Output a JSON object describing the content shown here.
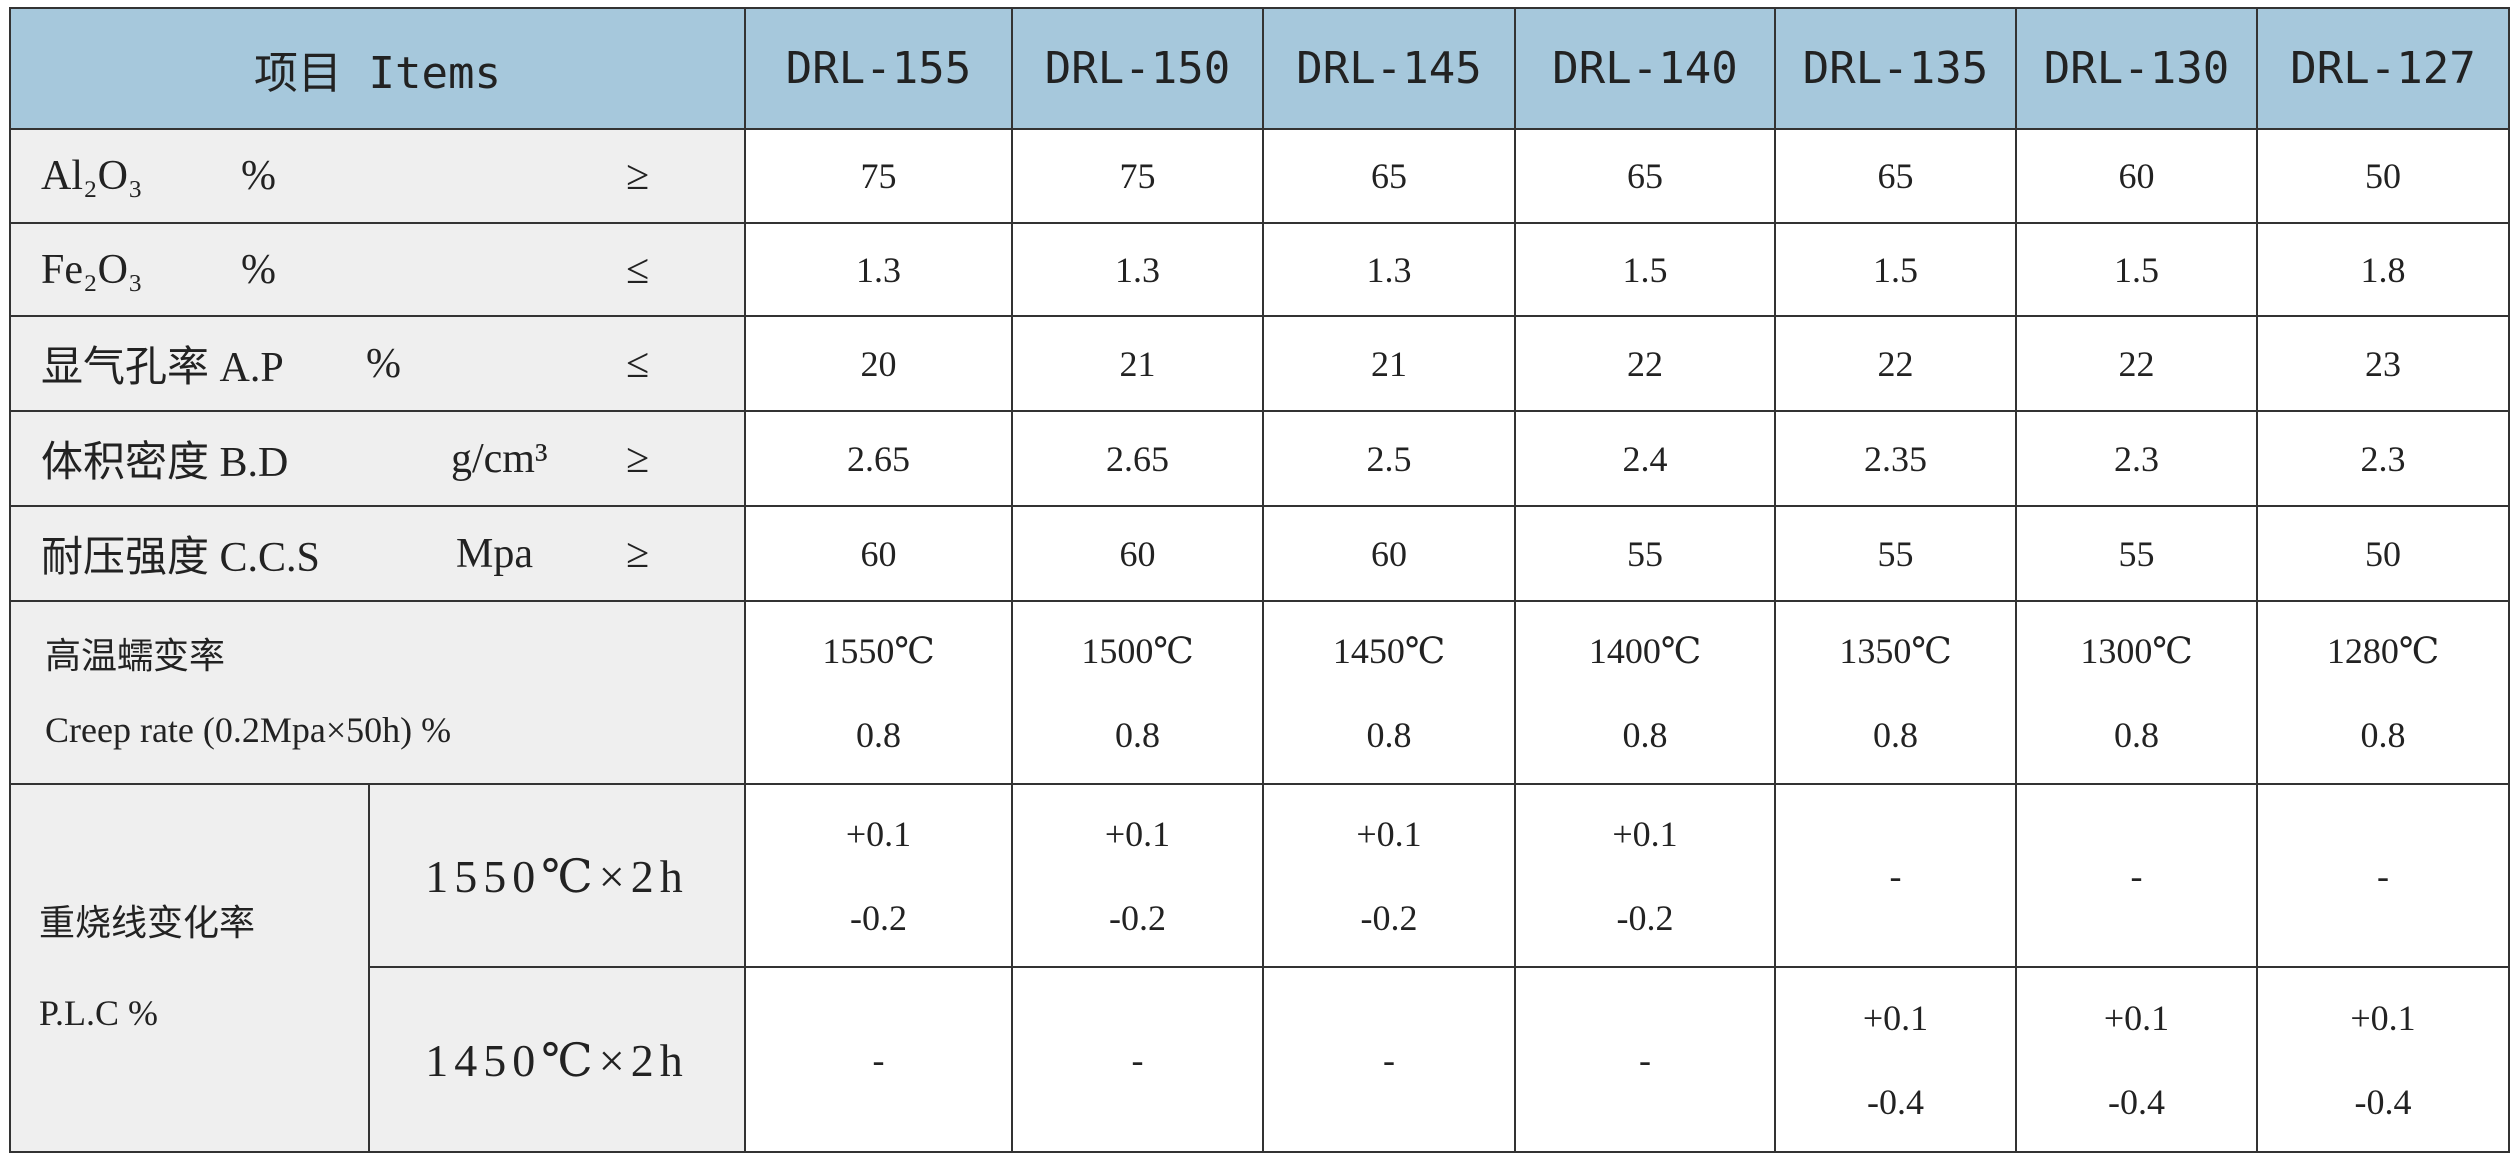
{
  "header": {
    "item": "项目 Items",
    "grades": [
      "DRL-155",
      "DRL-150",
      "DRL-145",
      "DRL-140",
      "DRL-135",
      "DRL-130",
      "DRL-127"
    ]
  },
  "rows": [
    {
      "name": "Al₂O₃",
      "unit": "%",
      "sign": "≥",
      "values": [
        "75",
        "75",
        "65",
        "65",
        "65",
        "60",
        "50"
      ]
    },
    {
      "name": "Fe₂O₃",
      "unit": "%",
      "sign": "≤",
      "values": [
        "1.3",
        "1.3",
        "1.3",
        "1.5",
        "1.5",
        "1.5",
        "1.8"
      ]
    },
    {
      "name": "显气孔率 A.P",
      "unit": "%",
      "sign": "≤",
      "values": [
        "20",
        "21",
        "21",
        "22",
        "22",
        "22",
        "23"
      ]
    },
    {
      "name": "体积密度 B.D",
      "unit": "g/cm³",
      "sign": "≥",
      "values": [
        "2.65",
        "2.65",
        "2.5",
        "2.4",
        "2.35",
        "2.3",
        "2.3"
      ]
    },
    {
      "name": "耐压强度 C.C.S",
      "unit": "Mpa",
      "sign": "≥",
      "values": [
        "60",
        "60",
        "60",
        "55",
        "55",
        "55",
        "50"
      ]
    }
  ],
  "creep": {
    "name": "高温蠕变率",
    "detail": "Creep rate (0.2Mpa×50h) %",
    "temperatures": [
      "1550℃",
      "1500℃",
      "1450℃",
      "1400℃",
      "1350℃",
      "1300℃",
      "1280℃"
    ],
    "values": [
      "0.8",
      "0.8",
      "0.8",
      "0.8",
      "0.8",
      "0.8",
      "0.8"
    ]
  },
  "plc": {
    "name": "重烧线变化率",
    "detail": "P.L.C %",
    "conditions": [
      {
        "label": "1550℃×2h",
        "values": [
          [
            "+0.1",
            "-0.2"
          ],
          [
            "+0.1",
            "-0.2"
          ],
          [
            "+0.1",
            "-0.2"
          ],
          [
            "+0.1",
            "-0.2"
          ],
          [
            "-"
          ],
          [
            "-"
          ],
          [
            "-"
          ]
        ]
      },
      {
        "label": "1450℃×2h",
        "values": [
          [
            "-"
          ],
          [
            "-"
          ],
          [
            "-"
          ],
          [
            "-"
          ],
          [
            "+0.1",
            "-0.4"
          ],
          [
            "+0.1",
            "-0.4"
          ],
          [
            "+0.1",
            "-0.4"
          ]
        ]
      }
    ]
  }
}
